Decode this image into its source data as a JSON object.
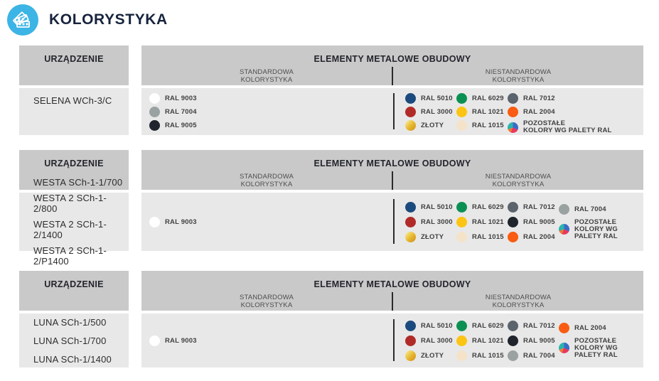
{
  "header": {
    "title": "KOLORYSTYKA",
    "icon": "color-palette-fan-icon",
    "icon_bg": "#3cb4e5"
  },
  "column_headers": {
    "device": "URZĄDZENIE",
    "elements": "ELEMENTY METALOWE OBUDOWY",
    "standard": [
      "STANDARDOWA",
      "KOLORYSTYKA"
    ],
    "nonstandard": [
      "NIESTANDARDOWA",
      "KOLORYSTYKA"
    ]
  },
  "tables": [
    {
      "devices": [
        "SELENA WCh-3/C"
      ],
      "standard": [
        {
          "label": "RAL 9003",
          "color": "#ffffff"
        },
        {
          "label": "RAL 7004",
          "color": "#9aa1a1"
        },
        {
          "label": "RAL 9005",
          "color": "#20242c"
        }
      ],
      "nonstandard": [
        [
          {
            "label": "RAL 5010",
            "color": "#1b4b7e"
          },
          {
            "label": "RAL 3000",
            "color": "#b02b28"
          },
          {
            "label": "ZŁOTY",
            "special": "gold"
          }
        ],
        [
          {
            "label": "RAL 6029",
            "color": "#0b9053"
          },
          {
            "label": "RAL 1021",
            "color": "#fcc414"
          },
          {
            "label": "RAL 1015",
            "color": "#f4e3c8"
          }
        ],
        [
          {
            "label": "RAL 7012",
            "color": "#5b636c"
          },
          {
            "label": "RAL 2004",
            "color": "#f95c12"
          },
          {
            "lines": [
              "POZOSTAŁE",
              "KOLORY WG PALETY RAL"
            ],
            "special": "palette"
          }
        ]
      ]
    },
    {
      "devices": [
        "WESTA SCh-1-1/700",
        "WESTA 2 SCh-1-2/800",
        "WESTA 2 SCh-1-2/1400",
        "WESTA 2 SCh-1-2/P1400"
      ],
      "standard": [
        {
          "label": "RAL 9003",
          "color": "#ffffff"
        }
      ],
      "nonstandard": [
        [
          {
            "label": "RAL 5010",
            "color": "#1b4b7e"
          },
          {
            "label": "RAL 3000",
            "color": "#b02b28"
          },
          {
            "label": "ZŁOTY",
            "special": "gold"
          }
        ],
        [
          {
            "label": "RAL 6029",
            "color": "#0b9053"
          },
          {
            "label": "RAL 1021",
            "color": "#fcc414"
          },
          {
            "label": "RAL 1015",
            "color": "#f4e3c8"
          }
        ],
        [
          {
            "label": "RAL 7012",
            "color": "#5b636c"
          },
          {
            "label": "RAL 9005",
            "color": "#20242c"
          },
          {
            "label": "RAL 2004",
            "color": "#f95c12"
          }
        ],
        [
          {
            "label": "RAL 7004",
            "color": "#9aa1a1"
          },
          {
            "lines": [
              "POZOSTAŁE",
              "KOLORY WG",
              "PALETY RAL"
            ],
            "special": "palette"
          }
        ]
      ]
    },
    {
      "devices": [
        "LUNA SCh-1/500",
        "LUNA SCh-1/700",
        "LUNA SCh-1/1400"
      ],
      "standard": [
        {
          "label": "RAL 9003",
          "color": "#ffffff"
        }
      ],
      "nonstandard": [
        [
          {
            "label": "RAL 5010",
            "color": "#1b4b7e"
          },
          {
            "label": "RAL 3000",
            "color": "#b02b28"
          },
          {
            "label": "ZŁOTY",
            "special": "gold"
          }
        ],
        [
          {
            "label": "RAL 6029",
            "color": "#0b9053"
          },
          {
            "label": "RAL 1021",
            "color": "#fcc414"
          },
          {
            "label": "RAL 1015",
            "color": "#f4e3c8"
          }
        ],
        [
          {
            "label": "RAL 7012",
            "color": "#5b636c"
          },
          {
            "label": "RAL 9005",
            "color": "#20242c"
          },
          {
            "label": "RAL 7004",
            "color": "#9aa1a1"
          }
        ],
        [
          {
            "label": "RAL 2004",
            "color": "#f95c12"
          },
          {
            "lines": [
              "POZOSTAŁE",
              "KOLORY WG",
              "PALETY RAL"
            ],
            "special": "palette"
          }
        ]
      ]
    }
  ]
}
